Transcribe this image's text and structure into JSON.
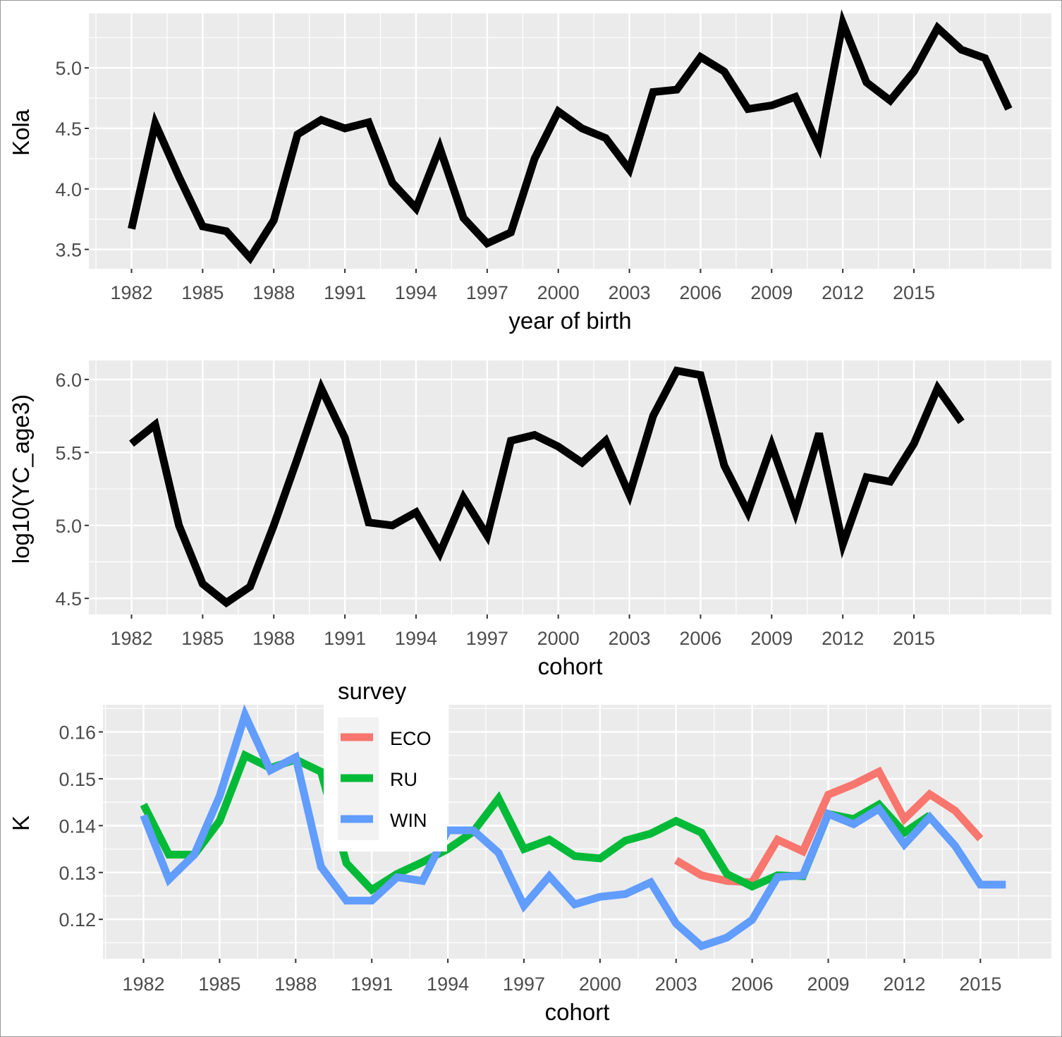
{
  "chart_data": [
    {
      "type": "line",
      "xlabel": "year of birth",
      "ylabel": "Kola",
      "xlim": [
        1980.2,
        2020.8
      ],
      "ylim": [
        3.34,
        5.45
      ],
      "x_ticks": [
        1982,
        1985,
        1988,
        1991,
        1994,
        1997,
        2000,
        2003,
        2006,
        2009,
        2012,
        2015
      ],
      "y_ticks": [
        3.5,
        4.0,
        4.5,
        5.0
      ],
      "y_tick_labels": [
        "3.5",
        "4.0",
        "4.5",
        "5.0"
      ],
      "grid": true,
      "series": [
        {
          "color": "#000000",
          "x": [
            1982,
            1983,
            1984,
            1985,
            1986,
            1987,
            1988,
            1989,
            1990,
            1991,
            1992,
            1993,
            1994,
            1995,
            1996,
            1997,
            1998,
            1999,
            2000,
            2001,
            2002,
            2003,
            2004,
            2005,
            2006,
            2007,
            2008,
            2009,
            2010,
            2011,
            2012,
            2013,
            2014,
            2015,
            2016,
            2017,
            2018,
            2019
          ],
          "y": [
            3.67,
            4.54,
            4.1,
            3.69,
            3.65,
            3.43,
            3.74,
            4.45,
            4.57,
            4.5,
            4.55,
            4.05,
            3.84,
            4.34,
            3.76,
            3.55,
            3.64,
            4.25,
            4.64,
            4.5,
            4.42,
            4.16,
            4.8,
            4.82,
            5.09,
            4.97,
            4.66,
            4.69,
            4.76,
            4.35,
            5.37,
            4.88,
            4.73,
            4.97,
            5.33,
            5.15,
            5.08,
            4.66
          ]
        }
      ]
    },
    {
      "type": "line",
      "xlabel": "cohort",
      "ylabel": "log10(YC_age3)",
      "xlim": [
        1980.2,
        2020.8
      ],
      "ylim": [
        4.39,
        6.13
      ],
      "x_ticks": [
        1982,
        1985,
        1988,
        1991,
        1994,
        1997,
        2000,
        2003,
        2006,
        2009,
        2012,
        2015
      ],
      "y_ticks": [
        4.5,
        5.0,
        5.5,
        6.0
      ],
      "y_tick_labels": [
        "4.5",
        "5.0",
        "5.5",
        "6.0"
      ],
      "grid": true,
      "series": [
        {
          "color": "#000000",
          "x": [
            1982,
            1983,
            1984,
            1985,
            1986,
            1987,
            1988,
            1989,
            1990,
            1991,
            1992,
            1993,
            1994,
            1995,
            1996,
            1997,
            1998,
            1999,
            2000,
            2001,
            2002,
            2003,
            2004,
            2005,
            2006,
            2007,
            2008,
            2009,
            2010,
            2011,
            2012,
            2013,
            2014,
            2015,
            2016,
            2017
          ],
          "y": [
            5.56,
            5.69,
            5.0,
            4.6,
            4.47,
            4.58,
            5.0,
            5.46,
            5.94,
            5.6,
            5.02,
            5.0,
            5.09,
            4.81,
            5.19,
            4.93,
            5.58,
            5.62,
            5.54,
            5.43,
            5.58,
            5.21,
            5.75,
            6.06,
            6.03,
            5.41,
            5.09,
            5.55,
            5.09,
            5.63,
            4.87,
            5.33,
            5.3,
            5.56,
            5.94,
            5.71
          ]
        }
      ]
    },
    {
      "type": "line",
      "xlabel": "cohort",
      "ylabel": "K",
      "xlim": [
        1980.4,
        2017.8
      ],
      "ylim": [
        0.1116,
        0.1658
      ],
      "x_ticks": [
        1982,
        1985,
        1988,
        1991,
        1994,
        1997,
        2000,
        2003,
        2006,
        2009,
        2012,
        2015
      ],
      "y_ticks": [
        0.12,
        0.13,
        0.14,
        0.15,
        0.16
      ],
      "y_tick_labels": [
        "0.12",
        "0.13",
        "0.14",
        "0.15",
        "0.16"
      ],
      "grid": true,
      "legend": {
        "title": "survey",
        "placement": "top-left inside"
      },
      "series": [
        {
          "name": "ECO",
          "color": "#F8766D",
          "x": [
            2003,
            2004,
            2005,
            2006,
            2007,
            2008,
            2009,
            2010,
            2011,
            2012,
            2013,
            2014,
            2015
          ],
          "y": [
            0.1326,
            0.1294,
            0.1282,
            0.1279,
            0.137,
            0.1345,
            0.1466,
            0.1488,
            0.1515,
            0.1414,
            0.1467,
            0.1432,
            0.1372
          ]
        },
        {
          "name": "RU",
          "color": "#00BA38",
          "x": [
            1982,
            1983,
            1984,
            1985,
            1986,
            1987,
            1988,
            1989,
            1990,
            1991,
            1992,
            1993,
            1994,
            1995,
            1996,
            1997,
            1998,
            1999,
            2000,
            2001,
            2002,
            2003,
            2004,
            2005,
            2006,
            2007,
            2008,
            2009,
            2010,
            2011,
            2012,
            2013
          ],
          "y": [
            0.1445,
            0.1338,
            0.1338,
            0.141,
            0.155,
            0.1523,
            0.1541,
            0.1515,
            0.132,
            0.1263,
            0.1297,
            0.1322,
            0.135,
            0.1387,
            0.1458,
            0.135,
            0.137,
            0.1335,
            0.133,
            0.1368,
            0.1383,
            0.141,
            0.1385,
            0.1297,
            0.127,
            0.1294,
            0.1292,
            0.1425,
            0.1414,
            0.1445,
            0.1385,
            0.1422
          ]
        },
        {
          "name": "WIN",
          "color": "#619CFF",
          "x": [
            1982,
            1983,
            1984,
            1985,
            1986,
            1987,
            1988,
            1989,
            1990,
            1991,
            1992,
            1993,
            1994,
            1995,
            1996,
            1997,
            1998,
            1999,
            2000,
            2001,
            2002,
            2003,
            2004,
            2005,
            2006,
            2007,
            2008,
            2009,
            2010,
            2011,
            2012,
            2013,
            2014,
            2015,
            2016
          ],
          "y": [
            0.1422,
            0.1285,
            0.1338,
            0.1463,
            0.1636,
            0.1518,
            0.1546,
            0.1312,
            0.124,
            0.124,
            0.129,
            0.1282,
            0.139,
            0.139,
            0.1342,
            0.1229,
            0.1292,
            0.1232,
            0.1248,
            0.1254,
            0.1279,
            0.1191,
            0.1143,
            0.1161,
            0.1199,
            0.129,
            0.1294,
            0.1425,
            0.1403,
            0.1436,
            0.136,
            0.1418,
            0.1357,
            0.1274,
            0.1274
          ]
        }
      ]
    }
  ]
}
